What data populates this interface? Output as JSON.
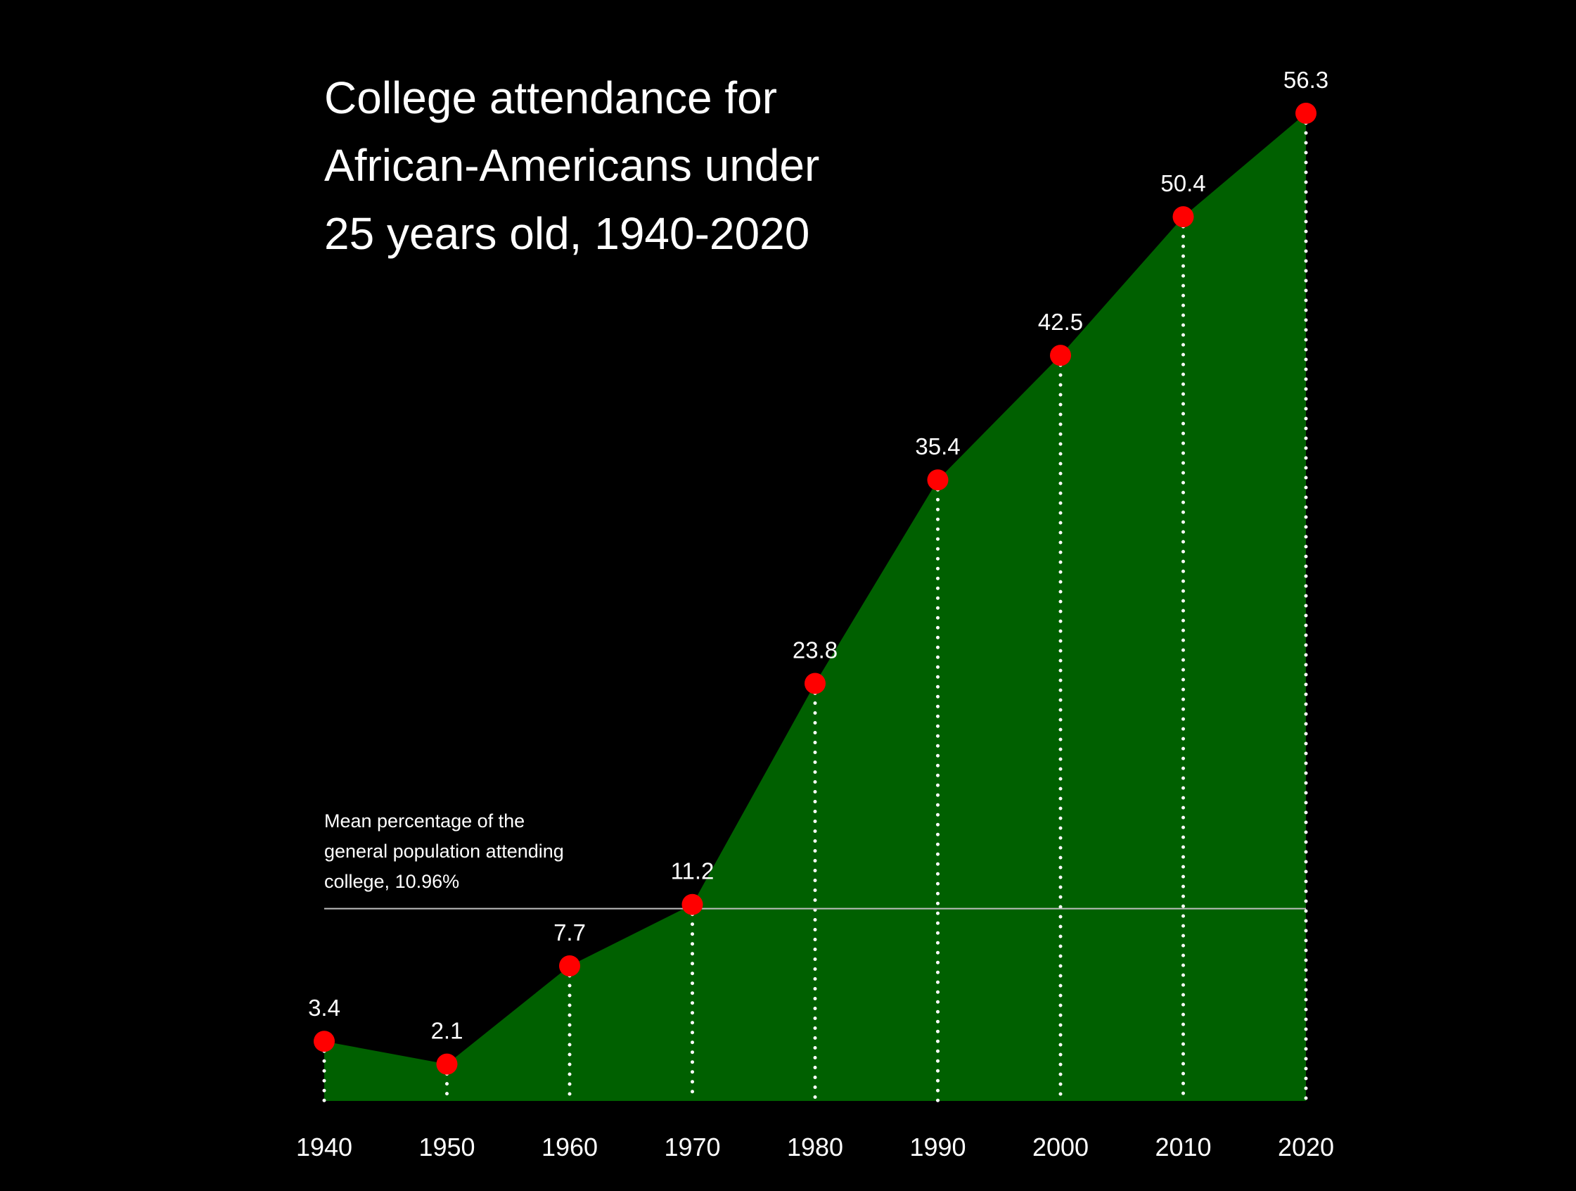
{
  "chart_data": {
    "type": "area",
    "title_lines": [
      "College attendance for",
      "African-Americans under",
      "25 years old, 1940-2020"
    ],
    "x": [
      "1940",
      "1950",
      "1960",
      "1970",
      "1980",
      "1990",
      "2000",
      "2010",
      "2020"
    ],
    "values": [
      3.4,
      2.1,
      7.7,
      11.2,
      23.8,
      35.4,
      42.5,
      50.4,
      56.3
    ],
    "value_labels": [
      "3.4",
      "2.1",
      "7.7",
      "11.2",
      "23.8",
      "35.4",
      "42.5",
      "50.4",
      "56.3"
    ],
    "reference_line": {
      "value": 10.96,
      "annotation_lines": [
        "Mean percentage of the",
        "general population attending",
        "college, 10.96%"
      ]
    },
    "ylim": [
      0,
      56.3
    ],
    "grid": false,
    "legend": "none",
    "colors": {
      "background": "#000000",
      "area_fill": "#006000",
      "marker": "#ff0000",
      "dotted_drop_lines": "#ffffff",
      "reference_line": "#bfbfbf",
      "text": "#ffffff"
    }
  }
}
